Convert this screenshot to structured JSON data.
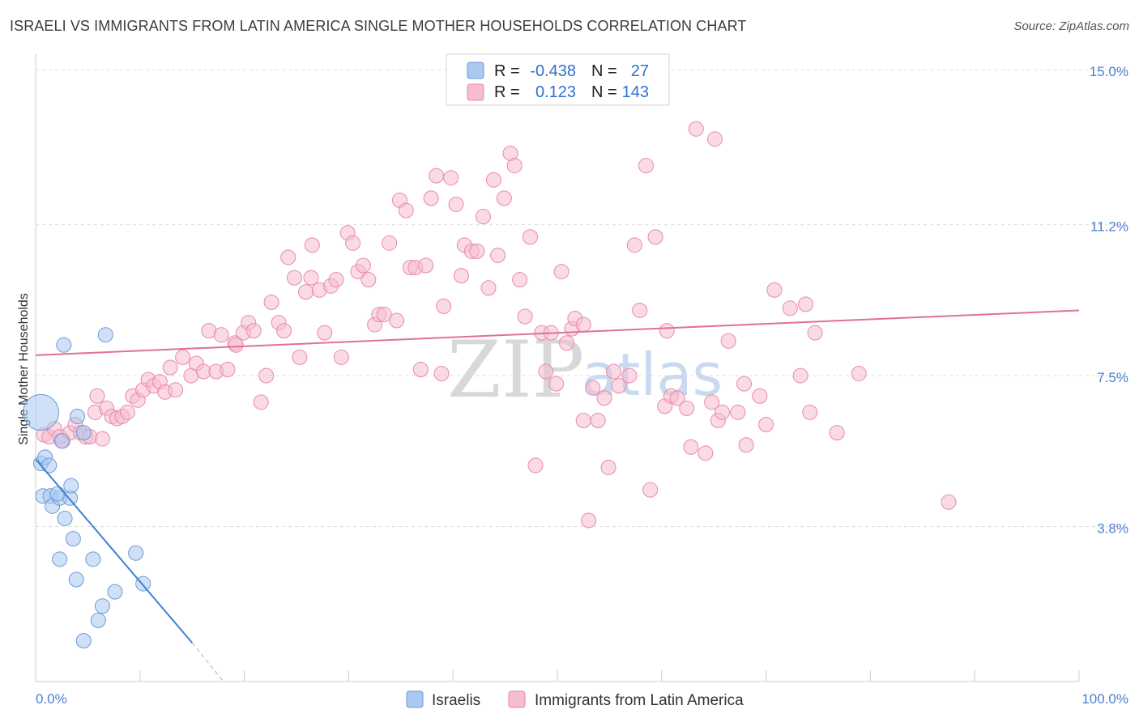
{
  "title": "ISRAELI VS IMMIGRANTS FROM LATIN AMERICA SINGLE MOTHER HOUSEHOLDS CORRELATION CHART",
  "source": "Source: ZipAtlas.com",
  "watermark": {
    "part1": "ZIP",
    "part2": "atlas"
  },
  "colors": {
    "israeli_fill": "#aac8f0",
    "israeli_stroke": "#6a9bd8",
    "israeli_line": "#3f7fd6",
    "latin_fill": "#f6bcd0",
    "latin_stroke": "#e88aaa",
    "latin_line": "#e0709a",
    "tick": "#4a7fd0",
    "grid": "#dddddd"
  },
  "legend": {
    "rows": [
      {
        "r_label": "R =",
        "r_value": "-0.438",
        "n_label": "N =",
        "n_value": "27"
      },
      {
        "r_label": "R =",
        "r_value": "0.123",
        "n_label": "N =",
        "n_value": "143"
      }
    ]
  },
  "chart_data": {
    "type": "scatter",
    "title": "ISRAELI VS IMMIGRANTS FROM LATIN AMERICA SINGLE MOTHER HOUSEHOLDS CORRELATION CHART",
    "xlabel": "",
    "ylabel": "Single Mother Households",
    "xlim": [
      0,
      100
    ],
    "ylim": [
      0,
      15.4
    ],
    "x_tick_labels": [
      {
        "value": 0,
        "label": "0.0%"
      },
      {
        "value": 100,
        "label": "100.0%"
      }
    ],
    "y_ticks": [
      {
        "value": 3.8,
        "label": "3.8%"
      },
      {
        "value": 7.5,
        "label": "7.5%"
      },
      {
        "value": 11.2,
        "label": "11.2%"
      },
      {
        "value": 15.0,
        "label": "15.0%"
      }
    ],
    "series": [
      {
        "name": "Israelis",
        "r": -0.438,
        "n": 27,
        "trend": {
          "x0": 0,
          "y0": 5.45,
          "x1": 15,
          "y1": 0.95,
          "dash_to_x": 18,
          "dash_to_y": 0
        },
        "points": [
          {
            "x": 0.5,
            "y": 6.6,
            "size": "large"
          },
          {
            "x": 0.5,
            "y": 5.35
          },
          {
            "x": 0.9,
            "y": 5.5
          },
          {
            "x": 1.3,
            "y": 5.3
          },
          {
            "x": 0.7,
            "y": 4.55
          },
          {
            "x": 1.4,
            "y": 4.55
          },
          {
            "x": 1.6,
            "y": 4.3
          },
          {
            "x": 2.3,
            "y": 4.5
          },
          {
            "x": 3.3,
            "y": 4.5
          },
          {
            "x": 3.4,
            "y": 4.8
          },
          {
            "x": 2.1,
            "y": 4.6
          },
          {
            "x": 2.8,
            "y": 4.0
          },
          {
            "x": 2.3,
            "y": 3.0
          },
          {
            "x": 3.6,
            "y": 3.5
          },
          {
            "x": 5.5,
            "y": 3.0
          },
          {
            "x": 3.9,
            "y": 2.5
          },
          {
            "x": 7.6,
            "y": 2.2
          },
          {
            "x": 6.4,
            "y": 1.85
          },
          {
            "x": 4.6,
            "y": 1.0
          },
          {
            "x": 6.0,
            "y": 1.5
          },
          {
            "x": 9.6,
            "y": 3.15
          },
          {
            "x": 10.3,
            "y": 2.4
          },
          {
            "x": 2.7,
            "y": 8.25
          },
          {
            "x": 6.7,
            "y": 8.5
          },
          {
            "x": 4.0,
            "y": 6.5
          },
          {
            "x": 2.5,
            "y": 5.9
          },
          {
            "x": 4.6,
            "y": 6.1
          }
        ]
      },
      {
        "name": "Immigrants from Latin America",
        "r": 0.123,
        "n": 143,
        "trend": {
          "x0": 0,
          "y0": 8.0,
          "x1": 100,
          "y1": 9.1
        },
        "points": [
          {
            "x": 0.8,
            "y": 6.05
          },
          {
            "x": 1.3,
            "y": 6.0
          },
          {
            "x": 1.8,
            "y": 6.2
          },
          {
            "x": 2.3,
            "y": 6.0
          },
          {
            "x": 2.6,
            "y": 5.9
          },
          {
            "x": 3.3,
            "y": 6.1
          },
          {
            "x": 3.8,
            "y": 6.3
          },
          {
            "x": 4.3,
            "y": 6.1
          },
          {
            "x": 4.8,
            "y": 6.0
          },
          {
            "x": 5.2,
            "y": 6.0
          },
          {
            "x": 5.7,
            "y": 6.6
          },
          {
            "x": 6.4,
            "y": 5.95
          },
          {
            "x": 5.9,
            "y": 7.0
          },
          {
            "x": 6.8,
            "y": 6.7
          },
          {
            "x": 7.3,
            "y": 6.5
          },
          {
            "x": 7.8,
            "y": 6.45
          },
          {
            "x": 8.3,
            "y": 6.5
          },
          {
            "x": 8.8,
            "y": 6.6
          },
          {
            "x": 9.3,
            "y": 7.0
          },
          {
            "x": 9.8,
            "y": 6.9
          },
          {
            "x": 10.3,
            "y": 7.15
          },
          {
            "x": 10.8,
            "y": 7.4
          },
          {
            "x": 11.3,
            "y": 7.25
          },
          {
            "x": 11.9,
            "y": 7.35
          },
          {
            "x": 12.4,
            "y": 7.1
          },
          {
            "x": 12.9,
            "y": 7.7
          },
          {
            "x": 13.4,
            "y": 7.15
          },
          {
            "x": 14.1,
            "y": 7.95
          },
          {
            "x": 14.9,
            "y": 7.5
          },
          {
            "x": 15.4,
            "y": 7.8
          },
          {
            "x": 16.1,
            "y": 7.6
          },
          {
            "x": 16.6,
            "y": 8.6
          },
          {
            "x": 17.3,
            "y": 7.6
          },
          {
            "x": 17.8,
            "y": 8.5
          },
          {
            "x": 18.4,
            "y": 7.65
          },
          {
            "x": 19.1,
            "y": 8.3
          },
          {
            "x": 19.2,
            "y": 8.25
          },
          {
            "x": 19.9,
            "y": 8.55
          },
          {
            "x": 20.4,
            "y": 8.8
          },
          {
            "x": 20.9,
            "y": 8.6
          },
          {
            "x": 21.6,
            "y": 6.85
          },
          {
            "x": 22.1,
            "y": 7.5
          },
          {
            "x": 22.6,
            "y": 9.3
          },
          {
            "x": 23.3,
            "y": 8.8
          },
          {
            "x": 23.8,
            "y": 8.6
          },
          {
            "x": 24.2,
            "y": 10.4
          },
          {
            "x": 24.8,
            "y": 9.9
          },
          {
            "x": 25.3,
            "y": 7.95
          },
          {
            "x": 25.9,
            "y": 9.55
          },
          {
            "x": 26.4,
            "y": 9.9
          },
          {
            "x": 26.5,
            "y": 10.7
          },
          {
            "x": 27.2,
            "y": 9.6
          },
          {
            "x": 27.7,
            "y": 8.55
          },
          {
            "x": 28.3,
            "y": 9.7
          },
          {
            "x": 28.8,
            "y": 9.85
          },
          {
            "x": 29.3,
            "y": 7.95
          },
          {
            "x": 29.9,
            "y": 11.0
          },
          {
            "x": 30.4,
            "y": 10.75
          },
          {
            "x": 30.9,
            "y": 10.05
          },
          {
            "x": 31.4,
            "y": 10.2
          },
          {
            "x": 31.9,
            "y": 9.85
          },
          {
            "x": 32.5,
            "y": 8.75
          },
          {
            "x": 32.9,
            "y": 9.0
          },
          {
            "x": 33.4,
            "y": 9.0
          },
          {
            "x": 33.9,
            "y": 10.75
          },
          {
            "x": 34.6,
            "y": 8.85
          },
          {
            "x": 34.9,
            "y": 11.8
          },
          {
            "x": 35.5,
            "y": 11.55
          },
          {
            "x": 35.9,
            "y": 10.15
          },
          {
            "x": 36.4,
            "y": 10.15
          },
          {
            "x": 36.9,
            "y": 7.65
          },
          {
            "x": 37.4,
            "y": 10.2
          },
          {
            "x": 37.9,
            "y": 11.85
          },
          {
            "x": 38.4,
            "y": 12.4
          },
          {
            "x": 38.9,
            "y": 7.55
          },
          {
            "x": 39.1,
            "y": 9.2
          },
          {
            "x": 39.8,
            "y": 12.35
          },
          {
            "x": 40.3,
            "y": 11.7
          },
          {
            "x": 40.8,
            "y": 9.95
          },
          {
            "x": 41.1,
            "y": 10.7
          },
          {
            "x": 41.8,
            "y": 10.55
          },
          {
            "x": 42.3,
            "y": 10.55
          },
          {
            "x": 42.9,
            "y": 11.4
          },
          {
            "x": 43.4,
            "y": 9.65
          },
          {
            "x": 43.9,
            "y": 12.3
          },
          {
            "x": 44.3,
            "y": 10.45
          },
          {
            "x": 44.9,
            "y": 11.85
          },
          {
            "x": 45.5,
            "y": 12.95
          },
          {
            "x": 45.9,
            "y": 12.65
          },
          {
            "x": 46.4,
            "y": 9.85
          },
          {
            "x": 46.9,
            "y": 8.95
          },
          {
            "x": 47.4,
            "y": 10.9
          },
          {
            "x": 47.9,
            "y": 5.3
          },
          {
            "x": 48.5,
            "y": 8.55
          },
          {
            "x": 48.9,
            "y": 7.6
          },
          {
            "x": 49.4,
            "y": 8.55
          },
          {
            "x": 49.9,
            "y": 7.3
          },
          {
            "x": 50.4,
            "y": 10.05
          },
          {
            "x": 50.9,
            "y": 8.3
          },
          {
            "x": 51.4,
            "y": 8.65
          },
          {
            "x": 51.7,
            "y": 8.9
          },
          {
            "x": 52.5,
            "y": 8.75
          },
          {
            "x": 52.5,
            "y": 6.4
          },
          {
            "x": 53.4,
            "y": 7.2
          },
          {
            "x": 53.9,
            "y": 6.4
          },
          {
            "x": 54.5,
            "y": 6.95
          },
          {
            "x": 54.9,
            "y": 5.25
          },
          {
            "x": 55.4,
            "y": 7.6
          },
          {
            "x": 55.9,
            "y": 7.25
          },
          {
            "x": 53.0,
            "y": 3.95
          },
          {
            "x": 56.9,
            "y": 7.5
          },
          {
            "x": 57.4,
            "y": 10.7
          },
          {
            "x": 57.9,
            "y": 9.1
          },
          {
            "x": 58.5,
            "y": 12.65
          },
          {
            "x": 58.9,
            "y": 4.7
          },
          {
            "x": 59.4,
            "y": 10.9
          },
          {
            "x": 60.3,
            "y": 6.75
          },
          {
            "x": 60.5,
            "y": 8.6
          },
          {
            "x": 60.9,
            "y": 7.0
          },
          {
            "x": 61.5,
            "y": 6.95
          },
          {
            "x": 62.4,
            "y": 6.7
          },
          {
            "x": 62.8,
            "y": 5.75
          },
          {
            "x": 63.3,
            "y": 13.55
          },
          {
            "x": 64.2,
            "y": 5.6
          },
          {
            "x": 64.8,
            "y": 6.85
          },
          {
            "x": 65.4,
            "y": 6.4
          },
          {
            "x": 66.4,
            "y": 8.35
          },
          {
            "x": 65.8,
            "y": 6.6
          },
          {
            "x": 67.3,
            "y": 6.6
          },
          {
            "x": 67.9,
            "y": 7.3
          },
          {
            "x": 68.1,
            "y": 5.8
          },
          {
            "x": 69.4,
            "y": 7.0
          },
          {
            "x": 70.0,
            "y": 6.3
          },
          {
            "x": 70.8,
            "y": 9.6
          },
          {
            "x": 72.3,
            "y": 9.15
          },
          {
            "x": 73.3,
            "y": 7.5
          },
          {
            "x": 73.8,
            "y": 9.25
          },
          {
            "x": 74.2,
            "y": 6.6
          },
          {
            "x": 74.7,
            "y": 8.55
          },
          {
            "x": 76.8,
            "y": 6.1
          },
          {
            "x": 78.9,
            "y": 7.55
          },
          {
            "x": 65.1,
            "y": 13.3
          },
          {
            "x": 87.5,
            "y": 4.4
          }
        ]
      }
    ]
  }
}
